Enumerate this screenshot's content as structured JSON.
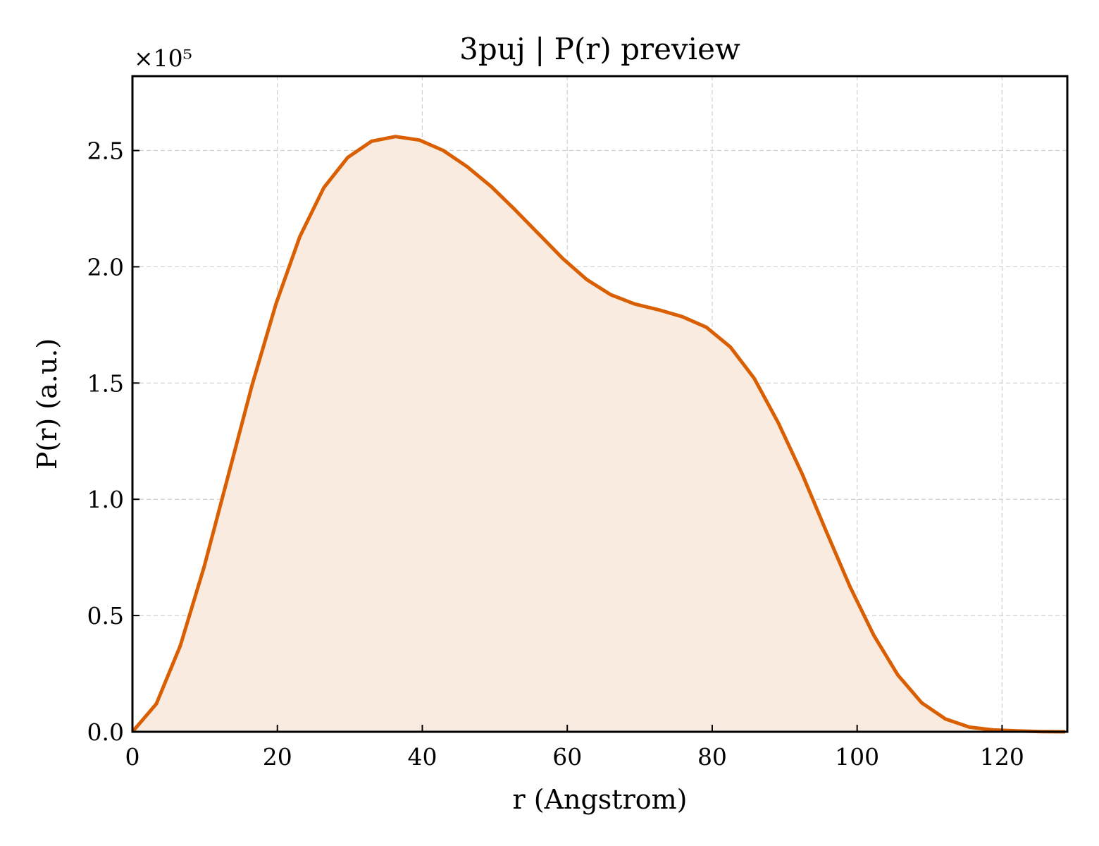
{
  "chart_data": {
    "type": "area",
    "title": "3puj | P(r) preview",
    "xlabel": "r (Angstrom)",
    "ylabel": "P(r) (a.u.)",
    "y_offset_label": "×10⁵",
    "xlim": [
      0,
      129
    ],
    "ylim": [
      0,
      2.82
    ],
    "xticks": [
      0,
      20,
      40,
      60,
      80,
      100,
      120
    ],
    "yticks": [
      0.0,
      0.5,
      1.0,
      1.5,
      2.0,
      2.5
    ],
    "ytick_labels": [
      "0.0",
      "0.5",
      "1.0",
      "1.5",
      "2.0",
      "2.5"
    ],
    "grid": true,
    "line_color": "#d95f02",
    "fill_color": "#f9ebe0",
    "series": [
      {
        "x": [
          0,
          3.3,
          6.6,
          9.9,
          13.2,
          16.5,
          19.8,
          23.1,
          26.4,
          29.7,
          33.0,
          36.3,
          39.6,
          42.9,
          46.2,
          49.5,
          52.8,
          56.1,
          59.4,
          62.7,
          66.0,
          69.3,
          72.6,
          75.9,
          79.2,
          82.5,
          85.8,
          89.1,
          92.4,
          95.7,
          99.0,
          102.3,
          105.6,
          108.9,
          112.2,
          115.5,
          118.8,
          122.1,
          125.4,
          128.7
        ],
        "values": [
          0.0,
          0.12,
          0.37,
          0.71,
          1.1,
          1.49,
          1.84,
          2.13,
          2.34,
          2.47,
          2.54,
          2.56,
          2.545,
          2.5,
          2.43,
          2.345,
          2.245,
          2.14,
          2.035,
          1.945,
          1.88,
          1.84,
          1.815,
          1.785,
          1.74,
          1.655,
          1.52,
          1.33,
          1.11,
          0.865,
          0.625,
          0.415,
          0.245,
          0.125,
          0.055,
          0.02,
          0.008,
          0.004,
          0.001,
          0.0
        ]
      }
    ]
  }
}
